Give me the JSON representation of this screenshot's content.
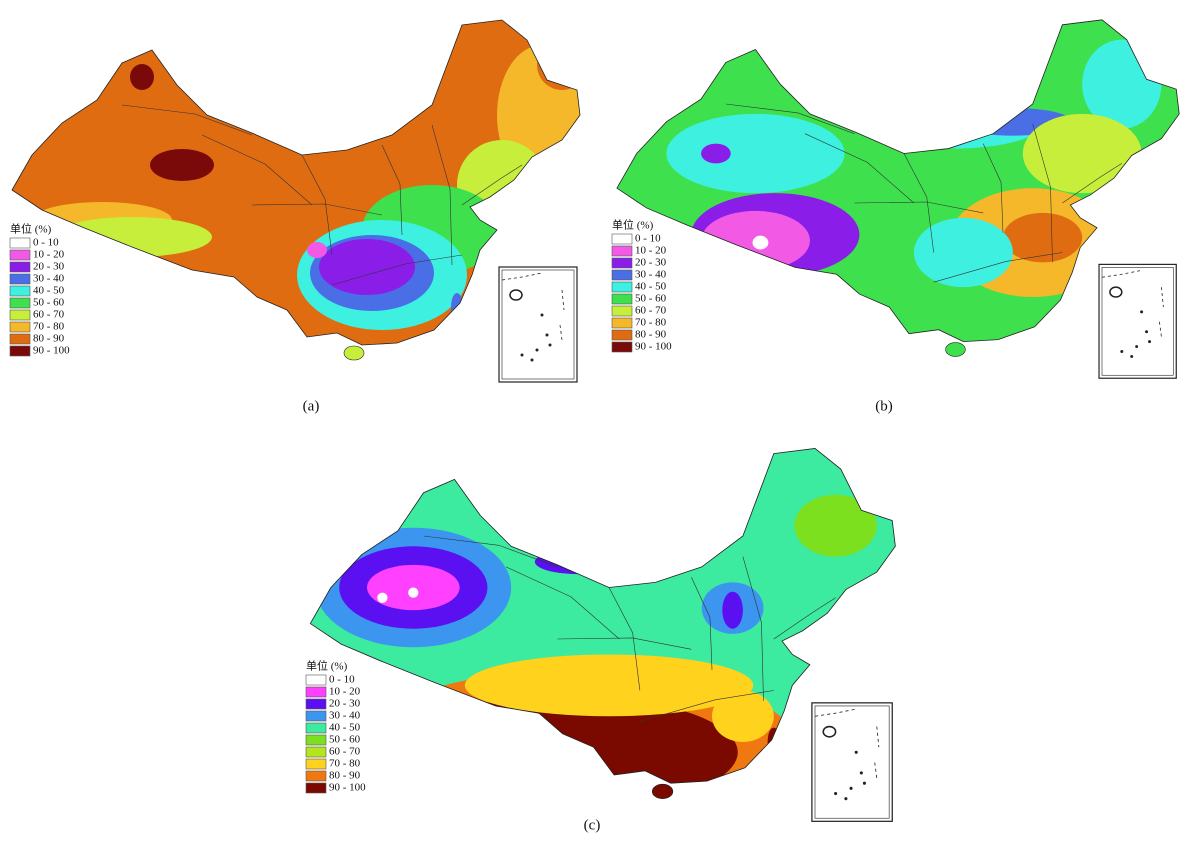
{
  "panels": [
    {
      "label": "(a)",
      "legend": {
        "title": "单位 (%)",
        "items": [
          {
            "label": "0 - 10",
            "color": "#ffffff"
          },
          {
            "label": "10 - 20",
            "color": "#f25ae6"
          },
          {
            "label": "20 - 30",
            "color": "#8a1ee8"
          },
          {
            "label": "30 - 40",
            "color": "#4a6ee6"
          },
          {
            "label": "40 - 50",
            "color": "#3ef0e0"
          },
          {
            "label": "50 - 60",
            "color": "#3ee04e"
          },
          {
            "label": "60 - 70",
            "color": "#c8ee3c"
          },
          {
            "label": "70 - 80",
            "color": "#f5b82a"
          },
          {
            "label": "80 - 90",
            "color": "#e06c12"
          },
          {
            "label": "90 - 100",
            "color": "#7a0a0a"
          }
        ]
      }
    },
    {
      "label": "(b)",
      "legend": {
        "title": "单位 (%)",
        "items": [
          {
            "label": "0 - 10",
            "color": "#ffffff"
          },
          {
            "label": "10 - 20",
            "color": "#f25ae6"
          },
          {
            "label": "20 - 30",
            "color": "#8a1ee8"
          },
          {
            "label": "30 - 40",
            "color": "#4a6ee6"
          },
          {
            "label": "40 - 50",
            "color": "#3ef0e0"
          },
          {
            "label": "50 - 60",
            "color": "#3ee04e"
          },
          {
            "label": "60 - 70",
            "color": "#c8ee3c"
          },
          {
            "label": "70 - 80",
            "color": "#f5b82a"
          },
          {
            "label": "80 - 90",
            "color": "#e06c12"
          },
          {
            "label": "90 - 100",
            "color": "#7a0a0a"
          }
        ]
      }
    },
    {
      "label": "(c)",
      "legend": {
        "title": "单位 (%)",
        "items": [
          {
            "label": "0 - 10",
            "color": "#ffffff"
          },
          {
            "label": "10 - 20",
            "color": "#ff40ff"
          },
          {
            "label": "20 - 30",
            "color": "#5a10f0"
          },
          {
            "label": "30 - 40",
            "color": "#3c96f0"
          },
          {
            "label": "40 - 50",
            "color": "#3ceaa0"
          },
          {
            "label": "50 - 60",
            "color": "#7ce01e"
          },
          {
            "label": "60 - 70",
            "color": "#b4e61e"
          },
          {
            "label": "70 - 80",
            "color": "#ffd21e"
          },
          {
            "label": "80 - 90",
            "color": "#f07810"
          },
          {
            "label": "90 - 100",
            "color": "#7a0a00"
          }
        ]
      }
    }
  ]
}
